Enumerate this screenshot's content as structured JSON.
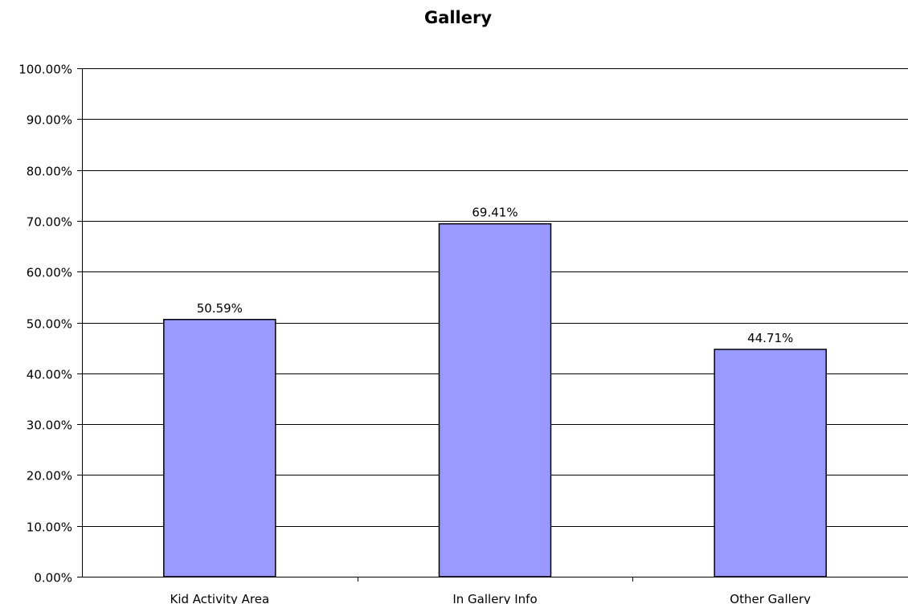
{
  "chart_data": {
    "type": "bar",
    "title": "Gallery",
    "xlabel": "",
    "ylabel": "",
    "categories": [
      "Kid Activity Area",
      "In Gallery Info",
      "Other Gallery"
    ],
    "values": [
      50.59,
      69.41,
      44.71
    ],
    "value_labels": [
      "50.59%",
      "69.41%",
      "44.71%"
    ],
    "ylim": [
      0,
      100
    ],
    "yticks": [
      0,
      10,
      20,
      30,
      40,
      50,
      60,
      70,
      80,
      90,
      100
    ],
    "ytick_labels": [
      "0.00%",
      "10.00%",
      "20.00%",
      "30.00%",
      "40.00%",
      "50.00%",
      "60.00%",
      "70.00%",
      "80.00%",
      "90.00%",
      "100.00%"
    ],
    "grid": true,
    "legend": "none",
    "bar_color": "#9999ff",
    "bar_border_color": "#000000",
    "gridline_color": "#000000"
  }
}
